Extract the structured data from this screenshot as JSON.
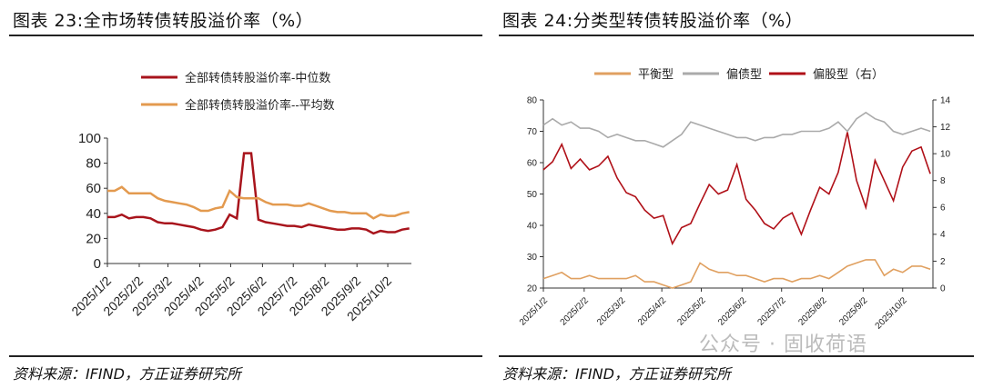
{
  "left": {
    "title": "图表 23:全市场转债转股溢价率（%）",
    "source": "资料来源：IFIND，方正证券研究所"
  },
  "right": {
    "title": "图表 24:分类型转债转股溢价率（%）",
    "source": "资料来源：IFIND，方正证券研究所"
  },
  "watermark": "公众号 · 固收荷语",
  "chart_data": [
    {
      "type": "line",
      "title": "全市场转债转股溢价率（%）",
      "x_unit": "days since 2025/1/2, weekly samples",
      "x_step_days": 7,
      "ylim": [
        0,
        100
      ],
      "yticks": [
        0,
        20,
        40,
        60,
        80,
        100
      ],
      "xticks": [
        {
          "day": 0,
          "label": "2025/1/2"
        },
        {
          "day": 31,
          "label": "2025/2/2"
        },
        {
          "day": 59,
          "label": "2025/3/2"
        },
        {
          "day": 90,
          "label": "2025/4/2"
        },
        {
          "day": 120,
          "label": "2025/5/2"
        },
        {
          "day": 151,
          "label": "2025/6/2"
        },
        {
          "day": 181,
          "label": "2025/7/2"
        },
        {
          "day": 212,
          "label": "2025/8/2"
        },
        {
          "day": 243,
          "label": "2025/9/2"
        },
        {
          "day": 273,
          "label": "2025/10/2"
        }
      ],
      "xmax": 296,
      "legend": "top",
      "series": [
        {
          "name": "全部转债转股溢价率-中位数",
          "color": "#a8141c",
          "values": [
            37,
            37,
            39,
            36,
            37,
            37,
            36,
            33,
            32,
            32,
            31,
            30,
            29,
            27,
            26,
            27,
            29,
            39,
            36,
            88,
            88,
            35,
            33,
            32,
            31,
            30,
            30,
            29,
            31,
            30,
            29,
            28,
            27,
            27,
            28,
            28,
            27,
            24,
            26,
            25,
            25,
            27,
            28
          ]
        },
        {
          "name": "全部转债转股溢价率--平均数",
          "color": "#e39a4f",
          "values": [
            58,
            58,
            61,
            56,
            56,
            56,
            56,
            52,
            50,
            49,
            48,
            47,
            45,
            42,
            42,
            44,
            45,
            58,
            53,
            52,
            52,
            52,
            49,
            47,
            47,
            47,
            46,
            46,
            48,
            46,
            44,
            42,
            41,
            41,
            40,
            40,
            40,
            36,
            39,
            38,
            38,
            40,
            41
          ]
        }
      ]
    },
    {
      "type": "line",
      "title": "分类型转债转股溢价率（%）",
      "x_unit": "days since 2025/1/2, weekly samples",
      "x_step_days": 7,
      "ylim": [
        20,
        80
      ],
      "yticks": [
        20,
        30,
        40,
        50,
        60,
        70,
        80
      ],
      "y2lim": [
        0,
        14
      ],
      "y2ticks": [
        0,
        2,
        4,
        6,
        8,
        10,
        12,
        14
      ],
      "xticks": [
        {
          "day": 0,
          "label": "2025/1/2"
        },
        {
          "day": 31,
          "label": "2025/2/2"
        },
        {
          "day": 59,
          "label": "2025/3/2"
        },
        {
          "day": 90,
          "label": "2025/4/2"
        },
        {
          "day": 120,
          "label": "2025/5/2"
        },
        {
          "day": 151,
          "label": "2025/6/2"
        },
        {
          "day": 181,
          "label": "2025/7/2"
        },
        {
          "day": 212,
          "label": "2025/8/2"
        },
        {
          "day": 243,
          "label": "2025/9/2"
        },
        {
          "day": 273,
          "label": "2025/10/2"
        }
      ],
      "xmax": 296,
      "legend": "top",
      "series": [
        {
          "name": "平衡型",
          "axis": "left",
          "color": "#e0a060",
          "values": [
            23,
            24,
            25,
            23,
            23,
            24,
            23,
            23,
            23,
            23,
            24,
            22,
            22,
            21,
            20,
            21,
            22,
            28,
            26,
            25,
            25,
            24,
            24,
            23,
            22,
            23,
            23,
            22,
            23,
            23,
            24,
            23,
            25,
            27,
            28,
            29,
            29,
            24,
            26,
            25,
            27,
            27,
            26
          ]
        },
        {
          "name": "偏债型",
          "axis": "left",
          "color": "#aaaaaa",
          "values": [
            72,
            74,
            72,
            73,
            71,
            71,
            70,
            68,
            69,
            68,
            67,
            67,
            66,
            65,
            67,
            69,
            73,
            72,
            71,
            70,
            69,
            68,
            68,
            67,
            68,
            68,
            69,
            69,
            70,
            70,
            70,
            71,
            73,
            70,
            74,
            76,
            74,
            73,
            70,
            69,
            70,
            71,
            70
          ]
        },
        {
          "name": "偏股型（右）",
          "axis": "right",
          "color": "#b01018",
          "values": [
            8.8,
            9.4,
            10.7,
            8.9,
            9.6,
            8.8,
            9.1,
            9.8,
            8.2,
            7.1,
            6.8,
            5.8,
            5.2,
            5.4,
            3.3,
            4.5,
            4.8,
            6.3,
            7.7,
            7.0,
            7.3,
            9.2,
            6.6,
            5.8,
            4.8,
            4.4,
            5.2,
            5.6,
            4.0,
            5.8,
            7.5,
            7.0,
            8.6,
            11.6,
            8.0,
            6.0,
            9.5,
            8.0,
            6.5,
            9.0,
            10.2,
            10.5,
            8.5
          ]
        }
      ]
    }
  ]
}
